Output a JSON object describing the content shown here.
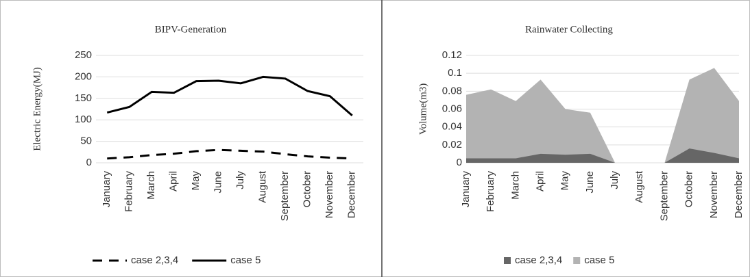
{
  "chart_data": [
    {
      "type": "line",
      "title": "BIPV-Generation",
      "y_label": "Electric Energy(MJ)",
      "categories": [
        "January",
        "February",
        "March",
        "April",
        "May",
        "June",
        "July",
        "August",
        "September",
        "October",
        "November",
        "December"
      ],
      "series": [
        {
          "name": "case 2,3,4",
          "color": "#000000",
          "style": "dashed",
          "values": [
            10,
            13,
            18,
            21,
            27,
            30,
            28,
            26,
            20,
            15,
            12,
            10
          ]
        },
        {
          "name": "case 5",
          "color": "#000000",
          "style": "solid",
          "values": [
            117,
            130,
            165,
            163,
            190,
            191,
            185,
            200,
            196,
            167,
            155,
            110
          ]
        }
      ],
      "ylim": [
        0,
        250
      ],
      "yticks": [
        0,
        50,
        100,
        150,
        200,
        250
      ],
      "grid": true,
      "legend": "bottom"
    },
    {
      "type": "area",
      "title": "Rainwater Collecting",
      "y_label": "Volume(m3)",
      "categories": [
        "January",
        "February",
        "March",
        "April",
        "May",
        "June",
        "July",
        "August",
        "September",
        "October",
        "November",
        "December"
      ],
      "series": [
        {
          "name": "case 2,3,4",
          "color": "#666666",
          "values": [
            0.005,
            0.005,
            0.005,
            0.01,
            0.009,
            0.01,
            0,
            0,
            0,
            0.016,
            0.011,
            0.005
          ]
        },
        {
          "name": "case 5",
          "color": "#b3b3b3",
          "values": [
            0.076,
            0.082,
            0.069,
            0.093,
            0.06,
            0.056,
            0,
            0,
            0,
            0.093,
            0.106,
            0.069
          ]
        }
      ],
      "ylim": [
        0,
        0.12
      ],
      "yticks": [
        0,
        0.02,
        0.04,
        0.06,
        0.08,
        0.1,
        0.12
      ],
      "grid": true,
      "legend": "bottom"
    }
  ]
}
